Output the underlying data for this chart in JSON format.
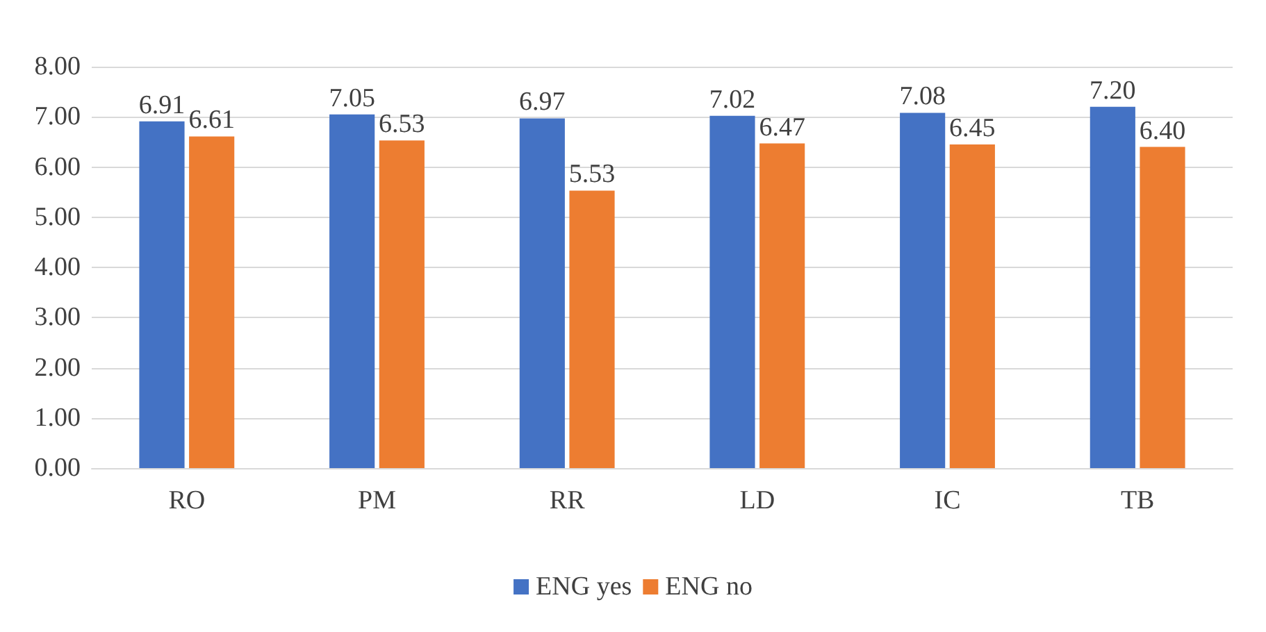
{
  "chart_data": {
    "type": "bar",
    "categories": [
      "RO",
      "PM",
      "RR",
      "LD",
      "IC",
      "TB"
    ],
    "series": [
      {
        "name": "ENG yes",
        "color": "#4472c4",
        "values": [
          6.91,
          7.05,
          6.97,
          7.02,
          7.08,
          7.2
        ],
        "value_labels": [
          "6.91",
          "7.05",
          "6.97",
          "7.02",
          "7.08",
          "7.20"
        ]
      },
      {
        "name": "ENG no",
        "color": "#ed7d31",
        "values": [
          6.61,
          6.53,
          5.53,
          6.47,
          6.45,
          6.4
        ],
        "value_labels": [
          "6.61",
          "6.53",
          "5.53",
          "6.47",
          "6.45",
          "6.40"
        ]
      }
    ],
    "ylim": [
      0,
      8
    ],
    "yticks": [
      {
        "value": 0,
        "label": "0.00"
      },
      {
        "value": 1,
        "label": "1.00"
      },
      {
        "value": 2,
        "label": "2.00"
      },
      {
        "value": 3,
        "label": "3.00"
      },
      {
        "value": 4,
        "label": "4.00"
      },
      {
        "value": 5,
        "label": "5.00"
      },
      {
        "value": 6,
        "label": "6.00"
      },
      {
        "value": 7,
        "label": "7.00"
      },
      {
        "value": 8,
        "label": "8.00"
      }
    ],
    "grid": "y",
    "legend": "bottom"
  }
}
